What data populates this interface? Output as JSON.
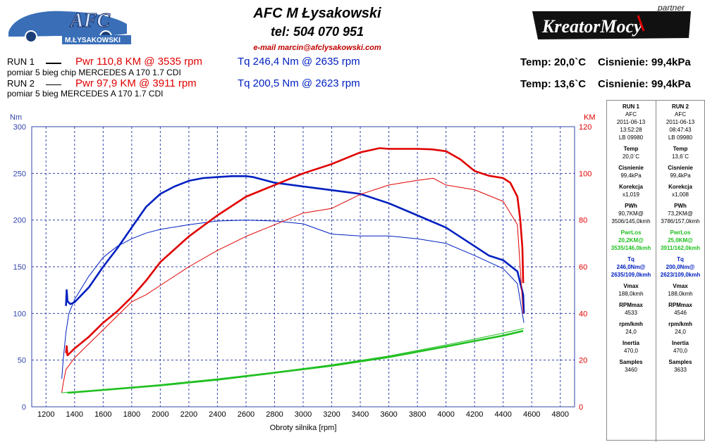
{
  "header": {
    "title": "AFC M Łysakowski",
    "tel": "tel: 504 070 951",
    "email": "e-mail marcin@afclysakowski.com",
    "logo_left_text": "AFC",
    "logo_left_sub": "M.ŁYSAKOWSKI",
    "logo_right_text": "KreatorMocy",
    "logo_right_sub": "partner"
  },
  "runs": [
    {
      "label": "RUN 1",
      "pwr": "Pwr  110,8 KM @ 3535 rpm",
      "tq": "Tq 246,4 Nm @ 2635 rpm",
      "desc": "pomiar   5 bieg chip MERCEDES A 170 1.7 CDI",
      "temp": "Temp: 20,0`C",
      "press": "Cisnienie: 99,4kPa"
    },
    {
      "label": "RUN 2",
      "pwr": "Pwr  97,9 KM @ 3911 rpm",
      "tq": "Tq 200,5 Nm @ 2623 rpm",
      "desc": "pomiar   5 bieg MERCEDES A 170 1.7 CDI",
      "temp": "Temp: 13,6`C",
      "press": "Cisnienie: 99,4kPa"
    }
  ],
  "side_panel": [
    {
      "run": "RUN 1",
      "shop": "AFC",
      "date": "2011-06-13",
      "time": "13:52:28",
      "lb": "LB 09980",
      "temp_l": "Temp",
      "temp": "20,0`C",
      "cis_l": "Cisnienie",
      "cis": "99,4kPa",
      "kor_l": "Korekcja",
      "kor": "x1,019",
      "pwh_l": "PWh",
      "pwh": "90,7KM@",
      "pwh2": "3506/145,0kmh",
      "los_l": "PwrLos",
      "los": "20,2KM@",
      "los2": "3535/146,0kmh",
      "tq_l": "Tq",
      "tq": "246,0Nm@",
      "tq2": "2635/109,0kmh",
      "vmax_l": "Vmax",
      "vmax": "188,0kmh",
      "rpm_l": "RPMmax",
      "rpm": "4533",
      "rk_l": "rpm/kmh",
      "rk": "24,0",
      "in_l": "Inertia",
      "in": "470,0",
      "sm_l": "Samples",
      "sm": "3460"
    },
    {
      "run": "RUN 2",
      "shop": "AFC",
      "date": "2011-06-13",
      "time": "08:47:43",
      "lb": "LB 09980",
      "temp_l": "Temp",
      "temp": "13,6`C",
      "cis_l": "Cisnienie",
      "cis": "99,4kPa",
      "kor_l": "Korekcja",
      "kor": "x1,008",
      "pwh_l": "PWh",
      "pwh": "73,2KM@",
      "pwh2": "3786/157,0kmh",
      "los_l": "PwrLos",
      "los": "25,0KM@",
      "los2": "3911/162,0kmh",
      "tq_l": "Tq",
      "tq": "200,0Nm@",
      "tq2": "2623/109,0kmh",
      "vmax_l": "Vmax",
      "vmax": "188,0kmh",
      "rpm_l": "RPMmax",
      "rpm": "4546",
      "rk_l": "rpm/kmh",
      "rk": "24,0",
      "in_l": "Inertia",
      "in": "470,0",
      "sm_l": "Samples",
      "sm": "3633"
    }
  ],
  "colors": {
    "power": "#e00000",
    "torque": "#0020c0",
    "loss": "#20c020",
    "grid": "#3344aa"
  },
  "chart_data": {
    "type": "line",
    "xlabel": "Obroty silnika [rpm]",
    "ylabel_left": "Nm",
    "ylabel_right": "KM",
    "xlim": [
      1100,
      4900
    ],
    "ylim_left": [
      0,
      300
    ],
    "ylim_right": [
      0,
      120
    ],
    "xticks": [
      1200,
      1400,
      1600,
      1800,
      2000,
      2200,
      2400,
      2600,
      2800,
      3000,
      3200,
      3400,
      3600,
      3800,
      4000,
      4200,
      4400,
      4600,
      4800
    ],
    "yticks_left": [
      0,
      50,
      100,
      150,
      200,
      250,
      300
    ],
    "yticks_right": [
      0,
      20,
      40,
      60,
      80,
      100,
      120
    ],
    "grid": true,
    "series": [
      {
        "name": "Tq RUN 1",
        "axis": "left",
        "color": "#0020c0",
        "width": 2.6,
        "x": [
          1340,
          1345,
          1350,
          1370,
          1400,
          1500,
          1600,
          1700,
          1800,
          1900,
          2000,
          2100,
          2200,
          2300,
          2400,
          2500,
          2600,
          2650,
          2700,
          2800,
          3000,
          3200,
          3400,
          3600,
          3800,
          4000,
          4200,
          4300,
          4400,
          4500,
          4540,
          4545
        ],
        "y": [
          108,
          125,
          113,
          110,
          112,
          128,
          150,
          170,
          192,
          214,
          228,
          236,
          242,
          245,
          246,
          247,
          247,
          246,
          244,
          240,
          236,
          232,
          228,
          218,
          205,
          192,
          172,
          162,
          157,
          145,
          120,
          100
        ]
      },
      {
        "name": "Tq RUN 2",
        "axis": "left",
        "color": "#0020c0",
        "width": 1,
        "x": [
          1310,
          1320,
          1340,
          1360,
          1400,
          1500,
          1600,
          1700,
          1800,
          1900,
          2000,
          2200,
          2400,
          2600,
          2800,
          3000,
          3200,
          3400,
          3600,
          3800,
          4000,
          4200,
          4400,
          4500,
          4545
        ],
        "y": [
          30,
          50,
          80,
          100,
          115,
          140,
          160,
          172,
          180,
          186,
          190,
          195,
          199,
          200,
          199,
          196,
          185,
          183,
          183,
          180,
          175,
          162,
          148,
          132,
          90
        ]
      },
      {
        "name": "Pwr RUN 1",
        "axis": "right",
        "color": "#e00000",
        "width": 2.6,
        "x": [
          1340,
          1345,
          1350,
          1400,
          1500,
          1600,
          1700,
          1800,
          1900,
          2000,
          2200,
          2400,
          2600,
          2800,
          3000,
          3200,
          3400,
          3535,
          3600,
          3800,
          3900,
          4000,
          4100,
          4200,
          4300,
          4400,
          4450,
          4500,
          4520,
          4535,
          4540
        ],
        "y": [
          23,
          26,
          22,
          25,
          30,
          36,
          41,
          47,
          54,
          62,
          73,
          82,
          90,
          95,
          100,
          104,
          109,
          110.8,
          110.5,
          110.5,
          110.3,
          109.5,
          106,
          101,
          99,
          98,
          96,
          90,
          80,
          68,
          53
        ]
      },
      {
        "name": "Pwr RUN 2",
        "axis": "right",
        "color": "#e00000",
        "width": 1,
        "x": [
          1310,
          1320,
          1340,
          1400,
          1500,
          1600,
          1700,
          1800,
          1900,
          2000,
          2200,
          2400,
          2600,
          2800,
          3000,
          3200,
          3400,
          3600,
          3800,
          3911,
          4000,
          4200,
          4400,
          4500,
          4540
        ],
        "y": [
          6,
          10,
          16,
          21,
          27,
          33,
          39,
          45,
          48,
          52,
          60,
          67,
          73,
          78,
          83,
          85,
          91,
          95,
          97,
          97.9,
          95,
          93,
          88,
          78,
          40
        ]
      },
      {
        "name": "Loss RUN 1",
        "axis": "right",
        "color": "#20c020",
        "width": 2.6,
        "x": [
          1350,
          1600,
          2000,
          2400,
          2800,
          3200,
          3600,
          4000,
          4200,
          4400,
          4540
        ],
        "y": [
          6,
          7.2,
          9.2,
          11.6,
          14.6,
          17.6,
          21.3,
          25.8,
          28.2,
          30.5,
          32.5
        ]
      },
      {
        "name": "Loss RUN 2",
        "axis": "right",
        "color": "#20c020",
        "width": 1,
        "x": [
          1310,
          1600,
          2000,
          2400,
          2800,
          3200,
          3600,
          4000,
          4200,
          4400,
          4545
        ],
        "y": [
          6,
          7.4,
          9.5,
          12,
          14.8,
          18,
          21.8,
          26.5,
          29,
          31.6,
          33.6
        ]
      }
    ]
  }
}
